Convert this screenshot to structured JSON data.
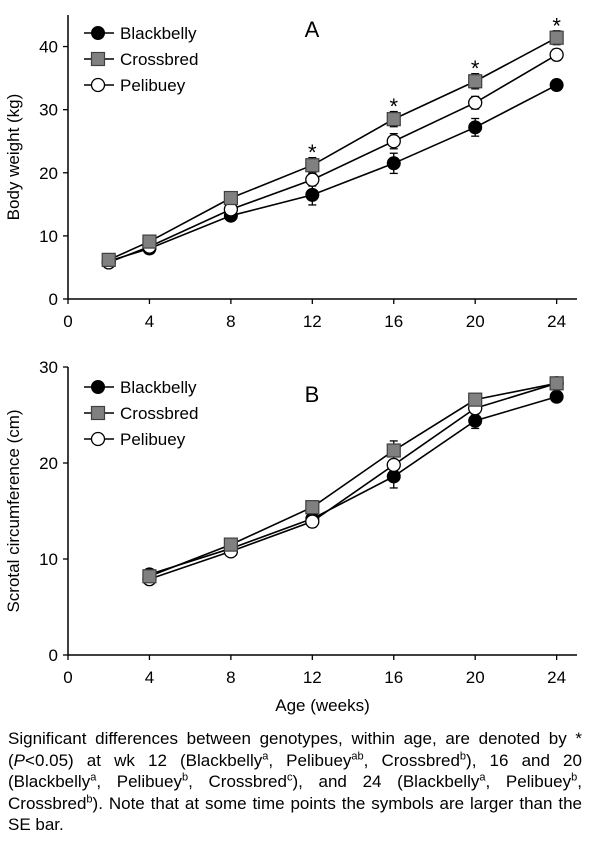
{
  "chart_data": [
    {
      "type": "line",
      "title": "A",
      "xlabel": "",
      "ylabel": "Body weight (kg)",
      "x_ticks": [
        0,
        4,
        8,
        12,
        16,
        20,
        24
      ],
      "y_ticks": [
        0,
        10,
        20,
        30,
        40
      ],
      "xlim": [
        0,
        25
      ],
      "ylim": [
        0,
        45
      ],
      "grid": false,
      "legend_position": "top-left",
      "x": [
        2,
        4,
        8,
        12,
        16,
        20,
        24
      ],
      "series": [
        {
          "name": "Blackbelly",
          "marker": "filled-circle",
          "color": "#000000",
          "values": [
            6.0,
            8.0,
            13.2,
            16.5,
            21.5,
            27.2,
            33.9
          ],
          "se": [
            0.4,
            0.5,
            0.8,
            1.6,
            1.6,
            1.4,
            0.8
          ]
        },
        {
          "name": "Crossbred",
          "marker": "gray-square",
          "color": "#808080",
          "values": [
            6.2,
            9.1,
            16.0,
            21.2,
            28.5,
            34.5,
            41.4
          ],
          "se": [
            0.4,
            0.5,
            0.8,
            1.2,
            1.2,
            1.2,
            1.1
          ]
        },
        {
          "name": "Pelibuey",
          "marker": "open-circle",
          "color": "#ffffff",
          "values": [
            5.8,
            8.3,
            14.2,
            18.9,
            25.0,
            31.1,
            38.7
          ],
          "se": [
            0.4,
            0.5,
            0.8,
            1.0,
            1.2,
            1.0,
            0.9
          ]
        }
      ],
      "annotations": [
        {
          "text": "*",
          "x": 12,
          "y": 23.9
        },
        {
          "text": "*",
          "x": 16,
          "y": 31.2
        },
        {
          "text": "*",
          "x": 20,
          "y": 37.2
        },
        {
          "text": "*",
          "x": 24,
          "y": 44.0
        }
      ]
    },
    {
      "type": "line",
      "title": "B",
      "xlabel": "Age (weeks)",
      "ylabel": "Scrotal circumference (cm)",
      "x_ticks": [
        0,
        4,
        8,
        12,
        16,
        20,
        24
      ],
      "y_ticks": [
        0,
        10,
        20,
        30
      ],
      "xlim": [
        0,
        25
      ],
      "ylim": [
        0,
        30
      ],
      "grid": false,
      "legend_position": "top-left",
      "x": [
        4,
        8,
        12,
        16,
        20,
        24
      ],
      "series": [
        {
          "name": "Blackbelly",
          "marker": "filled-circle",
          "color": "#000000",
          "values": [
            8.4,
            11.1,
            14.2,
            18.6,
            24.4,
            26.9
          ],
          "se": [
            0.3,
            0.4,
            0.8,
            1.2,
            0.8,
            0.5
          ]
        },
        {
          "name": "Crossbred",
          "marker": "gray-square",
          "color": "#808080",
          "values": [
            8.2,
            11.5,
            15.4,
            21.3,
            26.6,
            28.3
          ],
          "se": [
            0.3,
            0.4,
            0.6,
            1.0,
            0.6,
            0.5
          ]
        },
        {
          "name": "Pelibuey",
          "marker": "open-circle",
          "color": "#ffffff",
          "values": [
            7.9,
            10.8,
            13.9,
            19.8,
            25.7,
            28.3
          ],
          "se": [
            0.3,
            0.4,
            0.6,
            1.0,
            0.6,
            0.5
          ]
        }
      ],
      "annotations": []
    }
  ],
  "caption": {
    "p1": "Significant differences between genotypes, within age, are denoted by * (",
    "p_italic": "P",
    "p2": "<0.05) at wk 12 (Blackbelly",
    "s1": "a",
    "p3": ", Pelibuey",
    "s2": "ab",
    "p4": ", Crossbred",
    "s3": "b",
    "p5": "), 16 and 20 (Blackbelly",
    "s4": "a",
    "p6": ", Pelibuey",
    "s5": "b",
    "p7": ", Crossbred",
    "s6": "c",
    "p8": "), and 24 (Blackbelly",
    "s7": "a",
    "p9": ", Pelibuey",
    "s8": "b",
    "p10": ", Crossbred",
    "s9": "b",
    "p11": "). Note that at some time points the symbols are larger than the SE bar."
  }
}
